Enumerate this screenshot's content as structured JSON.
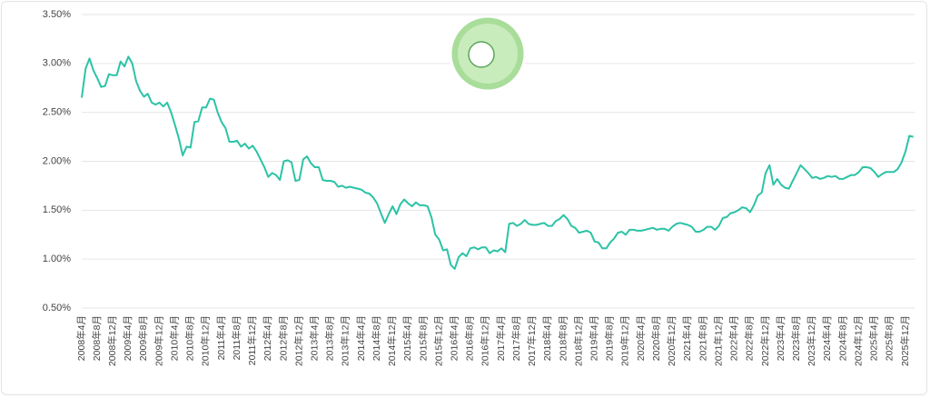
{
  "chart_data": {
    "type": "line",
    "color": "#2cc3a6",
    "grid": true,
    "ylim": [
      0.5,
      3.5
    ],
    "yticks": [
      {
        "value": 0.5,
        "label": "0.50%"
      },
      {
        "value": 1.0,
        "label": "1.00%"
      },
      {
        "value": 1.5,
        "label": "1.50%"
      },
      {
        "value": 2.0,
        "label": "2.00%"
      },
      {
        "value": 2.5,
        "label": "2.50%"
      },
      {
        "value": 3.0,
        "label": "3.00%"
      },
      {
        "value": 3.5,
        "label": "3.50%"
      }
    ],
    "categories": [
      "2008年4月",
      null,
      null,
      null,
      "2008年8月",
      null,
      null,
      null,
      "2008年12月",
      null,
      null,
      null,
      "2009年4月",
      null,
      null,
      null,
      "2009年8月",
      null,
      null,
      null,
      "2009年12月",
      null,
      null,
      null,
      "2010年4月",
      null,
      null,
      null,
      "2010年8月",
      null,
      null,
      null,
      "2010年12月",
      null,
      null,
      null,
      "2011年4月",
      null,
      null,
      null,
      "2011年8月",
      null,
      null,
      null,
      "2011年12月",
      null,
      null,
      null,
      "2012年4月",
      null,
      null,
      null,
      "2012年8月",
      null,
      null,
      null,
      "2012年12月",
      null,
      null,
      null,
      "2013年4月",
      null,
      null,
      null,
      "2013年8月",
      null,
      null,
      null,
      "2013年12月",
      null,
      null,
      null,
      "2014年4月",
      null,
      null,
      null,
      "2014年8月",
      null,
      null,
      null,
      "2014年12月",
      null,
      null,
      null,
      "2015年4月",
      null,
      null,
      null,
      "2015年8月",
      null,
      null,
      null,
      "2015年12月",
      null,
      null,
      null,
      "2016年4月",
      null,
      null,
      null,
      "2016年8月",
      null,
      null,
      null,
      "2016年12月",
      null,
      null,
      null,
      "2017年4月",
      null,
      null,
      null,
      "2017年8月",
      null,
      null,
      null,
      "2017年12月",
      null,
      null,
      null,
      "2018年4月",
      null,
      null,
      null,
      "2018年8月",
      null,
      null,
      null,
      "2018年12月",
      null,
      null,
      null,
      "2019年4月",
      null,
      null,
      null,
      "2019年8月",
      null,
      null,
      null,
      "2019年12月",
      null,
      null,
      null,
      "2020年4月",
      null,
      null,
      null,
      "2020年8月",
      null,
      null,
      null,
      "2020年12月",
      null,
      null,
      null,
      "2021年4月",
      null,
      null,
      null,
      "2021年8月",
      null,
      null,
      null,
      "2021年12月",
      null,
      null,
      null,
      "2022年4月",
      null,
      null,
      null,
      "2022年8月",
      null,
      null,
      null,
      "2022年12月",
      null,
      null,
      null,
      "2023年4月",
      null,
      null,
      null,
      "2023年8月",
      null,
      null,
      null,
      "2023年12月",
      null,
      null,
      null,
      "2024年4月",
      null,
      null,
      null,
      "2024年8月",
      null,
      null,
      null,
      "2024年12月",
      null,
      null,
      null,
      "2025年4月",
      null,
      null,
      null,
      "2025年8月",
      null,
      null,
      null,
      "2025年12月",
      null,
      null
    ],
    "values": [
      2.65,
      2.95,
      3.05,
      2.93,
      2.85,
      2.76,
      2.77,
      2.89,
      2.88,
      2.88,
      3.02,
      2.97,
      3.07,
      3.0,
      2.82,
      2.72,
      2.66,
      2.69,
      2.6,
      2.58,
      2.6,
      2.56,
      2.6,
      2.5,
      2.37,
      2.23,
      2.06,
      2.15,
      2.14,
      2.4,
      2.41,
      2.55,
      2.55,
      2.64,
      2.63,
      2.5,
      2.4,
      2.34,
      2.2,
      2.2,
      2.21,
      2.15,
      2.18,
      2.13,
      2.16,
      2.1,
      2.02,
      1.94,
      1.84,
      1.88,
      1.86,
      1.81,
      2.0,
      2.01,
      1.99,
      1.8,
      1.81,
      2.02,
      2.05,
      1.98,
      1.94,
      1.94,
      1.81,
      1.8,
      1.8,
      1.79,
      1.74,
      1.75,
      1.73,
      1.74,
      1.73,
      1.72,
      1.71,
      1.68,
      1.67,
      1.63,
      1.57,
      1.47,
      1.37,
      1.46,
      1.54,
      1.46,
      1.56,
      1.61,
      1.57,
      1.54,
      1.58,
      1.55,
      1.55,
      1.54,
      1.43,
      1.25,
      1.2,
      1.09,
      1.1,
      0.94,
      0.9,
      1.02,
      1.06,
      1.03,
      1.11,
      1.12,
      1.1,
      1.12,
      1.12,
      1.06,
      1.09,
      1.08,
      1.11,
      1.07,
      1.36,
      1.37,
      1.34,
      1.36,
      1.4,
      1.36,
      1.35,
      1.35,
      1.36,
      1.37,
      1.34,
      1.34,
      1.39,
      1.41,
      1.45,
      1.41,
      1.34,
      1.32,
      1.27,
      1.28,
      1.29,
      1.27,
      1.18,
      1.17,
      1.11,
      1.11,
      1.17,
      1.21,
      1.27,
      1.28,
      1.25,
      1.3,
      1.3,
      1.29,
      1.29,
      1.3,
      1.31,
      1.32,
      1.3,
      1.31,
      1.31,
      1.29,
      1.33,
      1.36,
      1.37,
      1.36,
      1.35,
      1.33,
      1.28,
      1.28,
      1.3,
      1.33,
      1.33,
      1.3,
      1.34,
      1.42,
      1.43,
      1.47,
      1.48,
      1.5,
      1.53,
      1.52,
      1.48,
      1.55,
      1.65,
      1.68,
      1.88,
      1.96,
      1.76,
      1.82,
      1.76,
      1.73,
      1.72,
      1.8,
      1.88,
      1.96,
      1.92,
      1.88,
      1.83,
      1.84,
      1.82,
      1.83,
      1.85,
      1.84,
      1.85,
      1.82,
      1.82,
      1.84,
      1.86,
      1.86,
      1.89,
      1.94,
      1.94,
      1.93,
      1.89,
      1.84,
      1.87,
      1.89,
      1.89,
      1.89,
      1.92,
      1.99,
      2.1,
      2.26,
      2.25
    ]
  }
}
